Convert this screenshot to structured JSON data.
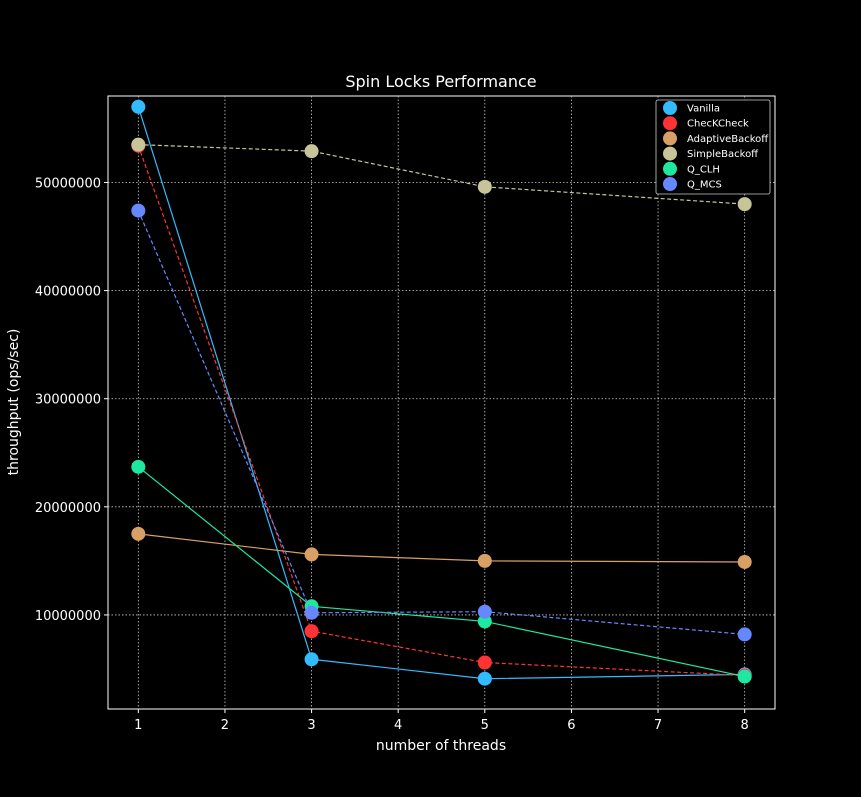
{
  "chart_data": {
    "type": "line",
    "title": "Spin Locks Performance",
    "xlabel": "number of threads",
    "ylabel": "throughput (ops/sec)",
    "xlim": [
      0.65,
      8.35
    ],
    "ylim": [
      1300000,
      58000000
    ],
    "x_ticks": [
      "1",
      "2",
      "3",
      "4",
      "5",
      "6",
      "7",
      "8"
    ],
    "y_ticks": [
      "10000000",
      "20000000",
      "30000000",
      "40000000",
      "50000000"
    ],
    "grid": true,
    "legend_position": "top-right",
    "series": [
      {
        "name": "Vanilla",
        "color": "#33bbff",
        "style": "solid",
        "x": [
          1,
          3,
          5,
          8
        ],
        "y": [
          57000000,
          5900000,
          4100000,
          4500000
        ]
      },
      {
        "name": "ChecKCheck",
        "color": "#ff3333",
        "style": "dashed",
        "x": [
          1,
          3,
          5,
          8
        ],
        "y": [
          53400000,
          8500000,
          5600000,
          4400000
        ]
      },
      {
        "name": "AdaptiveBackoff",
        "color": "#d9a066",
        "style": "solid",
        "x": [
          1,
          3,
          5,
          8
        ],
        "y": [
          17500000,
          15600000,
          15000000,
          14900000
        ]
      },
      {
        "name": "SimpleBackoff",
        "color": "#c8c49a",
        "style": "dashed",
        "x": [
          1,
          3,
          5,
          8
        ],
        "y": [
          53500000,
          52900000,
          49600000,
          48000000
        ]
      },
      {
        "name": "Q_CLH",
        "color": "#1ee8a0",
        "style": "solid",
        "x": [
          1,
          3,
          5,
          8
        ],
        "y": [
          23700000,
          10800000,
          9400000,
          4300000
        ]
      },
      {
        "name": "Q_MCS",
        "color": "#6688ff",
        "style": "dashed",
        "x": [
          1,
          3,
          5,
          8
        ],
        "y": [
          47400000,
          10200000,
          10300000,
          8200000
        ]
      }
    ]
  }
}
